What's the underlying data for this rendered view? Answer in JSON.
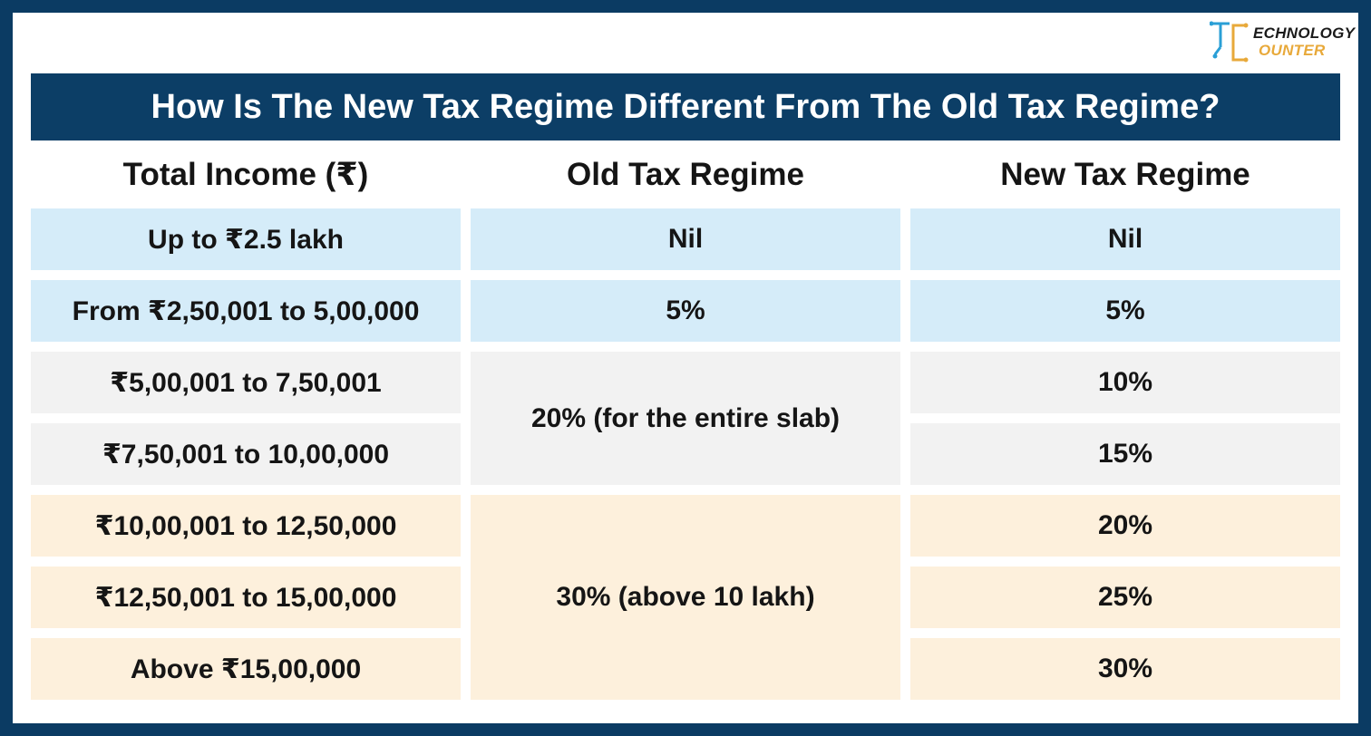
{
  "brand": {
    "line1": "ECHNOLOGY",
    "line2": "OUNTER",
    "colors": {
      "frame": "#0b3b63",
      "accent": "#e8a93a",
      "logo_blue": "#2a9fd6"
    }
  },
  "title": "How Is The New Tax Regime Different From The Old Tax Regime?",
  "table": {
    "headers": [
      "Total Income (₹)",
      "Old Tax Regime",
      "New Tax Regime"
    ],
    "income": [
      "Up to ₹2.5 lakh",
      "From ₹2,50,001 to 5,00,000",
      "₹5,00,001 to 7,50,001",
      "₹7,50,001 to 10,00,000",
      "₹10,00,001 to 12,50,000",
      "₹12,50,001 to 15,00,000",
      "Above ₹15,00,000"
    ],
    "old_regime": [
      "Nil",
      "5%",
      "20% (for the entire slab)",
      "30% (above 10 lakh)"
    ],
    "new_regime": [
      "Nil",
      "5%",
      "10%",
      "15%",
      "20%",
      "25%",
      "30%"
    ],
    "colors": {
      "band_1": "#d5ecf9",
      "band_2": "#f2f2f2",
      "band_3": "#fdf0dc"
    }
  }
}
